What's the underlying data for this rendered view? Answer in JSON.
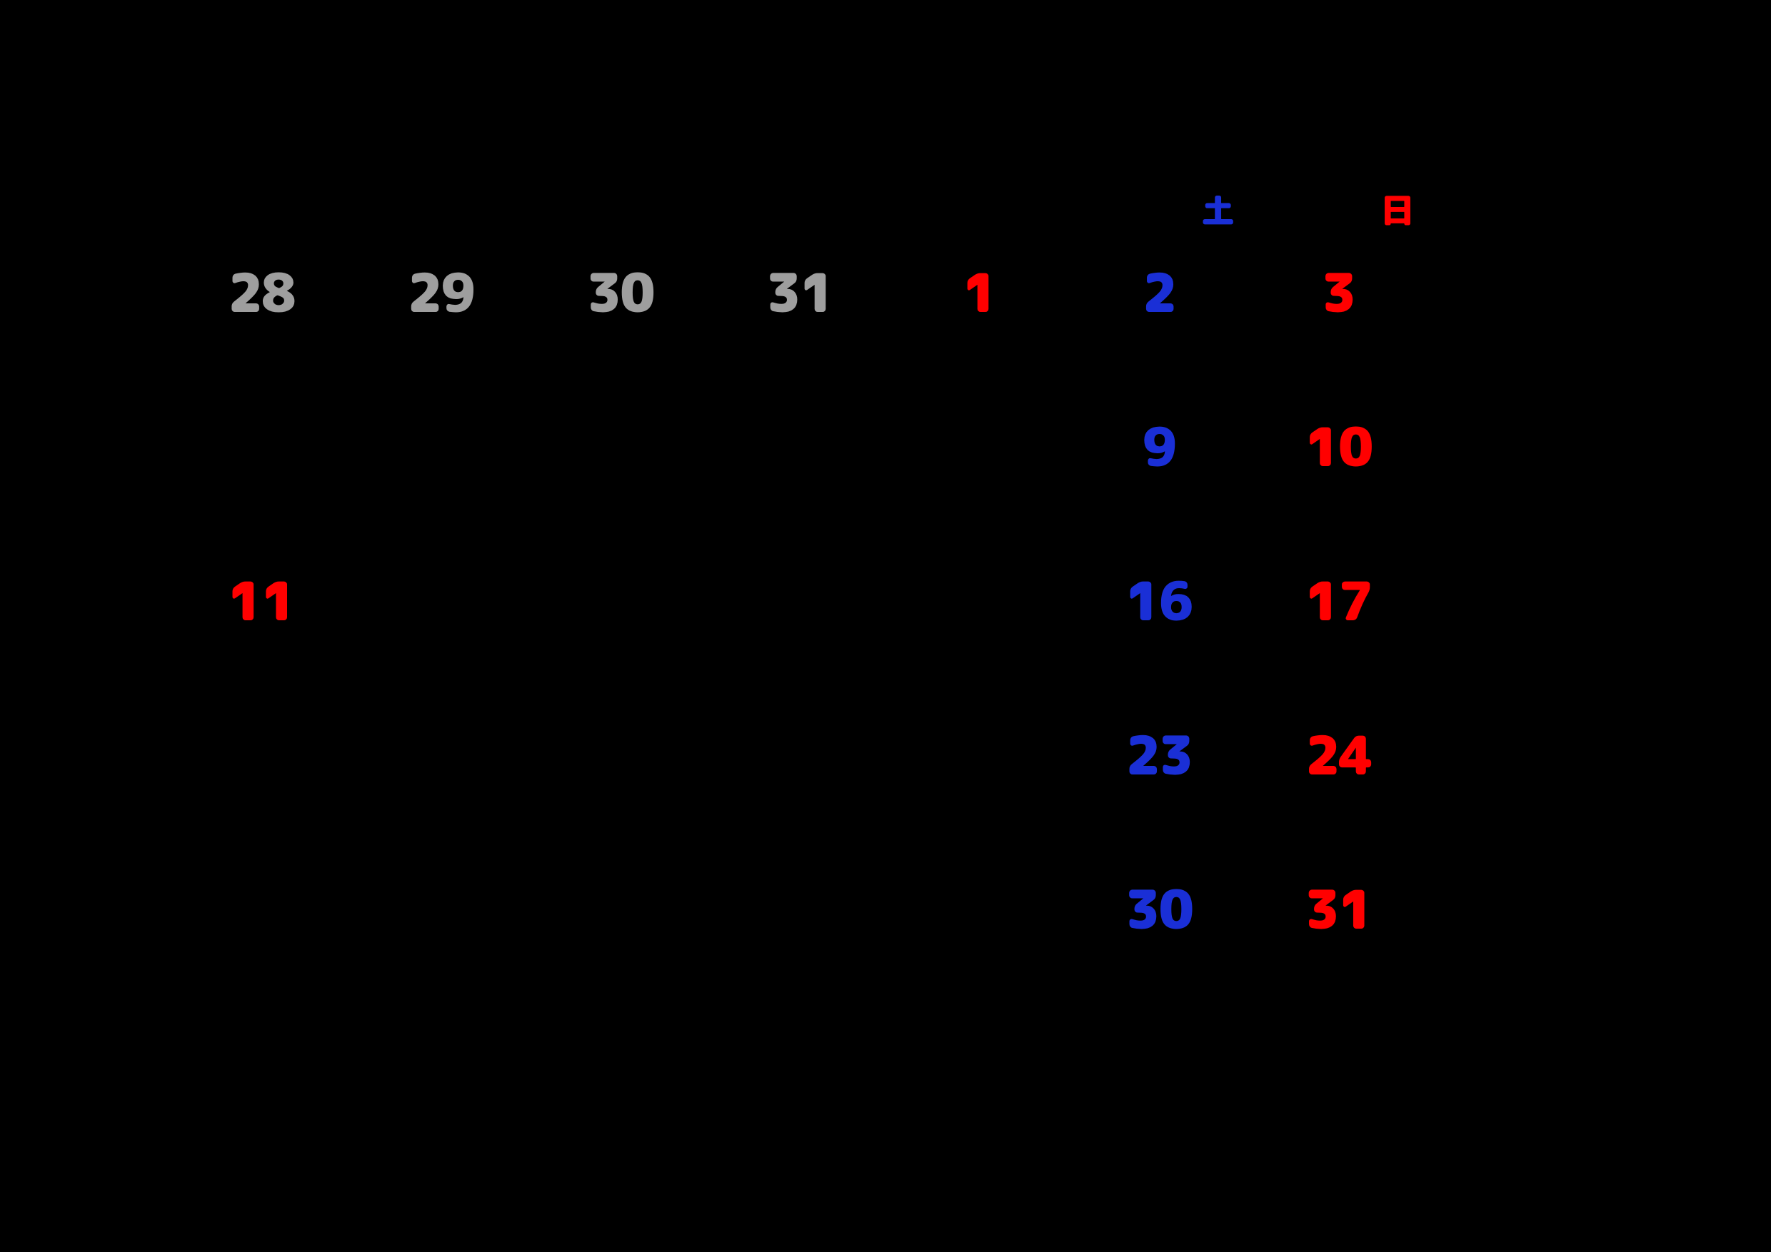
{
  "colors": {
    "background": "#000000",
    "prev_month": "#9e9e9e",
    "saturday": "#1a2fd6",
    "sunday_holiday": "#ff0000",
    "weekday": "#000000"
  },
  "day_headers": [
    {
      "label": "",
      "color": "#000000"
    },
    {
      "label": "",
      "color": "#000000"
    },
    {
      "label": "",
      "color": "#000000"
    },
    {
      "label": "",
      "color": "#000000"
    },
    {
      "label": "",
      "color": "#000000"
    },
    {
      "label": "土",
      "color": "#1a2fd6"
    },
    {
      "label": "日",
      "color": "#ff0000"
    }
  ],
  "weeks": [
    [
      {
        "n": "28",
        "color": "#9e9e9e"
      },
      {
        "n": "29",
        "color": "#9e9e9e"
      },
      {
        "n": "30",
        "color": "#9e9e9e"
      },
      {
        "n": "31",
        "color": "#9e9e9e"
      },
      {
        "n": "1",
        "color": "#ff0000"
      },
      {
        "n": "2",
        "color": "#1a2fd6"
      },
      {
        "n": "3",
        "color": "#ff0000"
      }
    ],
    [
      {
        "n": "",
        "color": "#000000"
      },
      {
        "n": "",
        "color": "#000000"
      },
      {
        "n": "",
        "color": "#000000"
      },
      {
        "n": "",
        "color": "#000000"
      },
      {
        "n": "",
        "color": "#000000"
      },
      {
        "n": "9",
        "color": "#1a2fd6"
      },
      {
        "n": "10",
        "color": "#ff0000"
      }
    ],
    [
      {
        "n": "11",
        "color": "#ff0000"
      },
      {
        "n": "",
        "color": "#000000"
      },
      {
        "n": "",
        "color": "#000000"
      },
      {
        "n": "",
        "color": "#000000"
      },
      {
        "n": "",
        "color": "#000000"
      },
      {
        "n": "16",
        "color": "#1a2fd6"
      },
      {
        "n": "17",
        "color": "#ff0000"
      }
    ],
    [
      {
        "n": "",
        "color": "#000000"
      },
      {
        "n": "",
        "color": "#000000"
      },
      {
        "n": "",
        "color": "#000000"
      },
      {
        "n": "",
        "color": "#000000"
      },
      {
        "n": "",
        "color": "#000000"
      },
      {
        "n": "23",
        "color": "#1a2fd6"
      },
      {
        "n": "24",
        "color": "#ff0000"
      }
    ],
    [
      {
        "n": "",
        "color": "#000000"
      },
      {
        "n": "",
        "color": "#000000"
      },
      {
        "n": "",
        "color": "#000000"
      },
      {
        "n": "",
        "color": "#000000"
      },
      {
        "n": "",
        "color": "#000000"
      },
      {
        "n": "30",
        "color": "#1a2fd6"
      },
      {
        "n": "31",
        "color": "#ff0000"
      }
    ],
    [
      {
        "n": "",
        "color": "#000000"
      },
      {
        "n": "",
        "color": "#000000"
      },
      {
        "n": "",
        "color": "#000000"
      },
      {
        "n": "",
        "color": "#000000"
      },
      {
        "n": "",
        "color": "#000000"
      },
      {
        "n": "",
        "color": "#000000"
      },
      {
        "n": "",
        "color": "#000000"
      }
    ]
  ]
}
